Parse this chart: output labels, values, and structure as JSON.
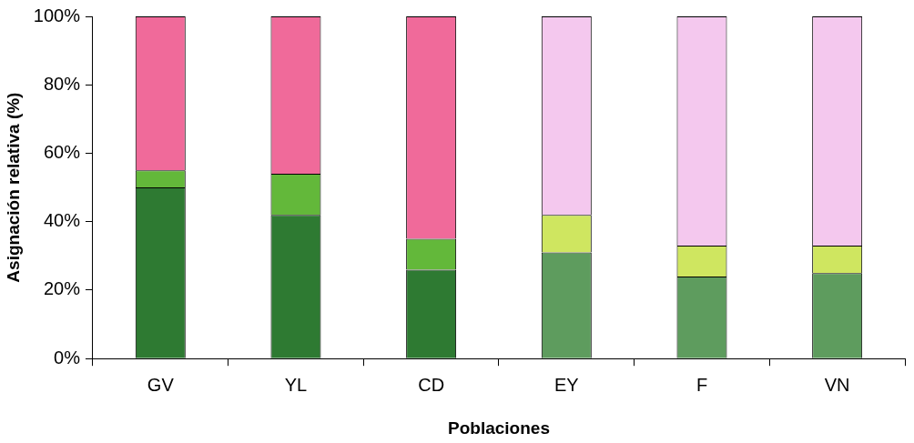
{
  "chart_data": {
    "type": "bar",
    "stacked": true,
    "xlabel": "Poblaciones",
    "ylabel": "Asignación relativa (%)",
    "categories": [
      "GV",
      "YL",
      "CD",
      "EY",
      "F",
      "VN"
    ],
    "series": [
      {
        "colors": [
          "#2e7a32",
          "#2e7a32",
          "#2e7a32",
          "#5e9c5e",
          "#5e9c5e",
          "#5e9c5e"
        ],
        "values": [
          50,
          42,
          26,
          31,
          24,
          25
        ]
      },
      {
        "colors": [
          "#63b83a",
          "#63b83a",
          "#63b83a",
          "#cfe660",
          "#cfe660",
          "#cfe660"
        ],
        "values": [
          5,
          12,
          9,
          11,
          9,
          8
        ]
      },
      {
        "colors": [
          "#f06a9a",
          "#f06a9a",
          "#f06a9a",
          "#f4c8ee",
          "#f4c8ee",
          "#f4c8ee"
        ],
        "values": [
          45,
          46,
          65,
          58,
          67,
          67
        ]
      }
    ],
    "ylim": [
      0,
      100
    ],
    "yticks": [
      {
        "value": 0,
        "label": "0%"
      },
      {
        "value": 20,
        "label": "20%"
      },
      {
        "value": 40,
        "label": "40%"
      },
      {
        "value": 60,
        "label": "60%"
      },
      {
        "value": 80,
        "label": "80%"
      },
      {
        "value": 100,
        "label": "100%"
      }
    ],
    "grid": false,
    "legend": false
  }
}
